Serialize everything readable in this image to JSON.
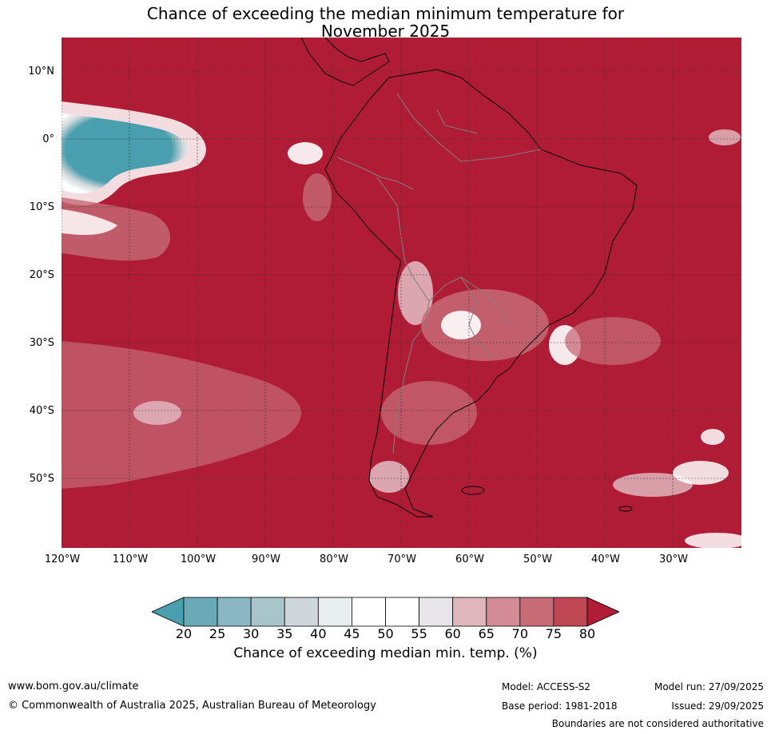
{
  "title_line1": "Chance of exceeding the median minimum temperature for",
  "title_line2": "November 2025",
  "lat_labels": [
    "10°N",
    "0°",
    "10°S",
    "20°S",
    "30°S",
    "40°S",
    "50°S"
  ],
  "lon_labels": [
    "120°W",
    "110°W",
    "100°W",
    "90°W",
    "80°W",
    "70°W",
    "60°W",
    "50°W",
    "40°W",
    "30°W"
  ],
  "colorbar": {
    "ticks": [
      "20",
      "25",
      "30",
      "35",
      "40",
      "45",
      "50",
      "55",
      "60",
      "65",
      "70",
      "75",
      "80"
    ],
    "colors": [
      "#4a9fae",
      "#6aaab8",
      "#8bb6c3",
      "#a8c5ca",
      "#d0d7da",
      "#e9eef1",
      "#ffffff",
      "#ffffff",
      "#e8e6e8",
      "#e0b6bd",
      "#d38c97",
      "#c76b77",
      "#c04754",
      "#b01c35"
    ],
    "label": "Chance of exceeding median min. temp. (%)"
  },
  "map_colors": {
    "ocean_fill": "#b01c35",
    "coast": "#000000",
    "borders": "#808080",
    "grid": "#333333"
  },
  "footer": {
    "website": "www.bom.gov.au/climate",
    "copyright": "© Commonwealth of Australia 2025, Australian Bureau of Meteorology",
    "model": "Model: ACCESS-S2",
    "base_period": "Base period: 1981-2018",
    "model_run": "Model run: 27/09/2025",
    "issued": "Issued: 29/09/2025",
    "disclaimer": "Boundaries are not considered authoritative"
  }
}
